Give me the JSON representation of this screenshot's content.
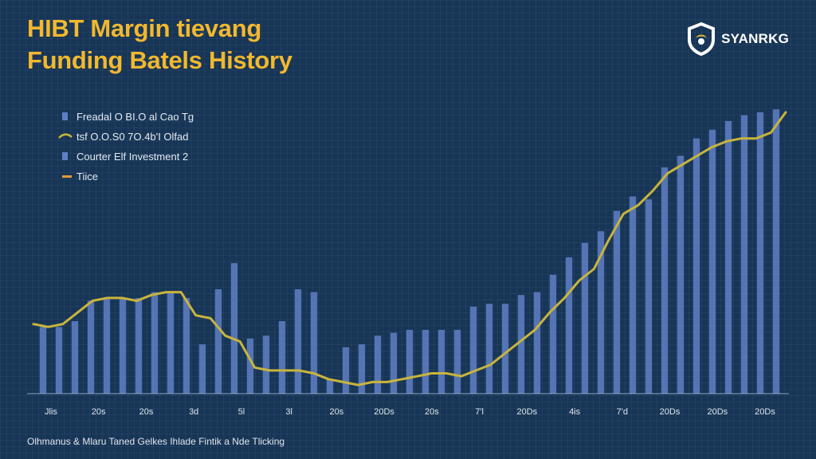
{
  "titles": {
    "line1": "HIBT Margin tievang",
    "line2": "Funding Batels History"
  },
  "logo": {
    "icon": "shield-icon",
    "text": "SYANRKG"
  },
  "footer": {
    "caption": "Olhmanus & Mlaru Taned Gelkes Ihlade Fintik a Nde Tlicking"
  },
  "colors": {
    "background": "#173556",
    "bar": "#5f7fc4",
    "line": "#c9b43c",
    "title": "#f2b82e",
    "legend_orange": "#e39a3a"
  },
  "chart_data": {
    "type": "bar",
    "title": "HIBT Margin tievang Funding Batels History",
    "xlabel": "",
    "ylabel": "",
    "grid": true,
    "legend_position": "top-left",
    "legend": [
      {
        "label": "Freadal O BI.O al Cao Tg",
        "marker": "square"
      },
      {
        "label": "tsf O.O.S0 7O.4b'I Olfad",
        "marker": "line"
      },
      {
        "label": "Courter Elf Investment 2",
        "marker": "square"
      },
      {
        "label": "Tiice",
        "marker": "dash"
      }
    ],
    "x_tick_labels": [
      "Jlis",
      "20s",
      "20s",
      "3d",
      "5l",
      "3l",
      "20s",
      "20Ds",
      "20s",
      "7'l",
      "20Ds",
      "4is",
      "7'd",
      "20Ds",
      "20Ds",
      "20Ds"
    ],
    "ylim": [
      0,
      100
    ],
    "series": [
      {
        "kind": "bar",
        "values": [
          23,
          23,
          25,
          32,
          33,
          33,
          33,
          35,
          35,
          33,
          17,
          36,
          45,
          19,
          20,
          25,
          36,
          35,
          5,
          16,
          17,
          20,
          21,
          22,
          22,
          22,
          22,
          30,
          31,
          31,
          34,
          35,
          41,
          47,
          52,
          56,
          63,
          68,
          67,
          78,
          82,
          88,
          91,
          94,
          96,
          97,
          98
        ]
      },
      {
        "kind": "line",
        "values": [
          24,
          23,
          24,
          28,
          32,
          33,
          33,
          32,
          34,
          35,
          35,
          27,
          26,
          20,
          18,
          9,
          8,
          8,
          8,
          7,
          5,
          4,
          3,
          4,
          4,
          5,
          6,
          7,
          7,
          6,
          8,
          10,
          14,
          18,
          22,
          28,
          33,
          39,
          43,
          53,
          62,
          65,
          70,
          76,
          79,
          82,
          85,
          87,
          88,
          88,
          90,
          97
        ]
      }
    ]
  }
}
